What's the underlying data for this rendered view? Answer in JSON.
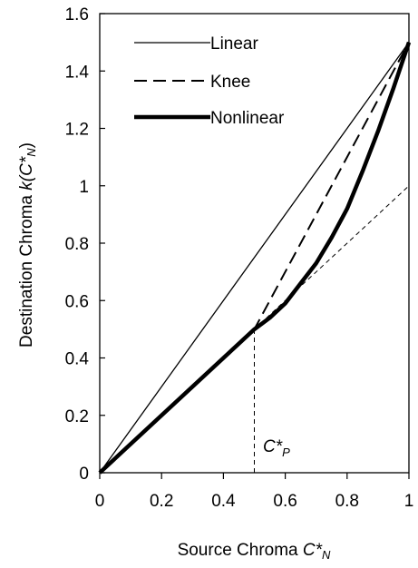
{
  "chart_data": {
    "type": "line",
    "xlabel": {
      "text": "Source Chroma ",
      "symbol": "C*",
      "subscript": "N"
    },
    "ylabel": {
      "text": "Destination Chroma  ",
      "func": "k(",
      "symbol": "C*",
      "subscript": "N",
      "close": ")"
    },
    "xlim": [
      0,
      1
    ],
    "ylim": [
      0,
      1.6
    ],
    "x_ticks": [
      "0",
      "0.2",
      "0.4",
      "0.6",
      "0.8",
      "1"
    ],
    "y_ticks": [
      "0",
      "0.2",
      "0.4",
      "0.6",
      "0.8",
      "1",
      "1.2",
      "1.4",
      "1.6"
    ],
    "grid": false,
    "legend_position": "top-left",
    "series": [
      {
        "name": "Linear",
        "style": "solid-thin",
        "x": [
          0,
          1
        ],
        "y": [
          0,
          1.5
        ]
      },
      {
        "name": "Knee",
        "style": "dashed",
        "x": [
          0,
          0.5,
          1
        ],
        "y": [
          0,
          0.5,
          1.5
        ]
      },
      {
        "name": "Nonlinear",
        "style": "solid-thick",
        "x": [
          0,
          0.5,
          0.55,
          0.6,
          0.65,
          0.7,
          0.75,
          0.8,
          0.85,
          0.9,
          0.95,
          1
        ],
        "y": [
          0,
          0.5,
          0.54,
          0.59,
          0.66,
          0.73,
          0.82,
          0.92,
          1.05,
          1.19,
          1.34,
          1.5
        ]
      }
    ],
    "guides": [
      {
        "kind": "identity-extension",
        "style": "dashed-thin",
        "x": [
          0.5,
          1
        ],
        "y": [
          0.5,
          1
        ]
      },
      {
        "kind": "vertical-marker",
        "style": "dashed-thin",
        "x": [
          0.5,
          0.5
        ],
        "y": [
          0,
          0.5
        ]
      }
    ],
    "annotation": {
      "symbol": "C*",
      "subscript": "P",
      "x": 0.5,
      "y": 0.07
    }
  }
}
